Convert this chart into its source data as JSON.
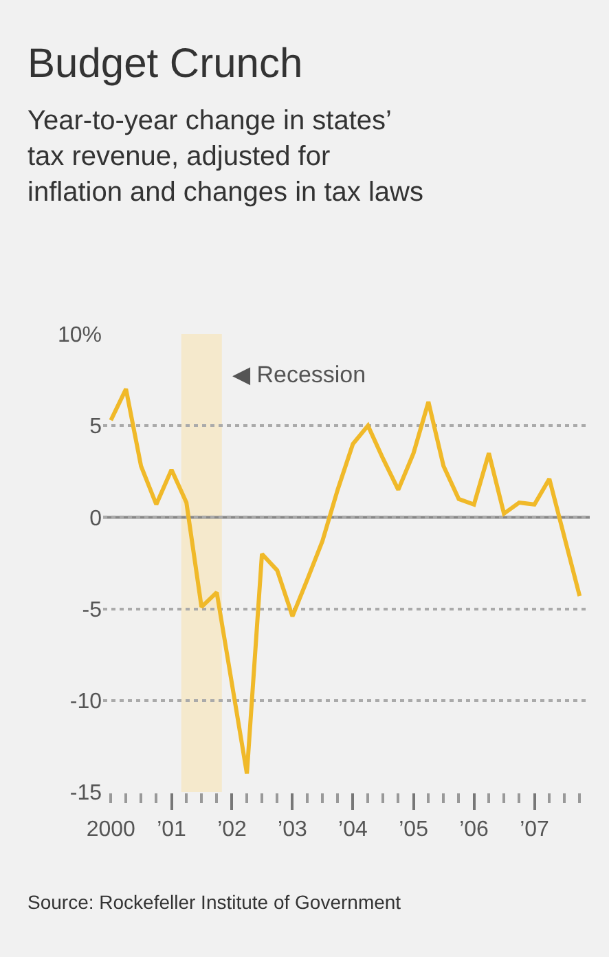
{
  "chart_data": {
    "type": "line",
    "title": "Budget Crunch",
    "subtitle": "Year-to-year change in states’ tax revenue, adjusted for inflation and changes in tax laws",
    "x": [
      "2000-01",
      "2000-04",
      "2000-07",
      "2000-10",
      "2001-01",
      "2001-04",
      "2001-07",
      "2001-10",
      "2002-04",
      "2002-07",
      "2002-10",
      "2003-01",
      "2003-04",
      "2003-07",
      "2003-10",
      "2004-01",
      "2004-04",
      "2004-07",
      "2004-10",
      "2005-01",
      "2005-04",
      "2005-07",
      "2005-10",
      "2006-01",
      "2006-04",
      "2006-07",
      "2006-10",
      "2007-01",
      "2007-04",
      "2007-10"
    ],
    "series": [
      {
        "color": "#f0b929",
        "values": [
          5.3,
          7.0,
          2.8,
          0.7,
          2.6,
          0.8,
          -4.9,
          -4.1,
          -14.0,
          -2.0,
          -2.9,
          -5.4,
          -3.4,
          -1.3,
          1.5,
          4.0,
          5.0,
          3.2,
          1.5,
          3.5,
          6.3,
          2.8,
          1.0,
          0.7,
          3.5,
          0.2,
          0.8,
          0.7,
          2.1,
          -4.3
        ]
      }
    ],
    "xlim": [
      "1999-11-15",
      "2007-12"
    ],
    "ylim": [
      -15,
      10
    ],
    "xticks": [
      {
        "value": "2000",
        "label": "2000"
      },
      {
        "value": "2001",
        "label": "’01"
      },
      {
        "value": "2002",
        "label": "’02"
      },
      {
        "value": "2003",
        "label": "’03"
      },
      {
        "value": "2004",
        "label": "’04"
      },
      {
        "value": "2005",
        "label": "’05"
      },
      {
        "value": "2006",
        "label": "’06"
      },
      {
        "value": "2007",
        "label": "’07"
      }
    ],
    "yticks": [
      -15,
      -10,
      -5,
      0,
      5,
      {
        "value": 10,
        "label": "10%"
      }
    ],
    "grid": "y",
    "marker": "none",
    "line_style": "solid",
    "legend": false,
    "bands": [
      {
        "axis": "x",
        "from": "2001-03",
        "to": "2001-11",
        "label": "◀ Recession",
        "color": "#f5e9cc"
      }
    ],
    "ref_lines": [
      {
        "axis": "y",
        "value": 0,
        "color": "#888888"
      }
    ],
    "annotations": [
      "Source: Rockefeller Institute of Government"
    ]
  }
}
